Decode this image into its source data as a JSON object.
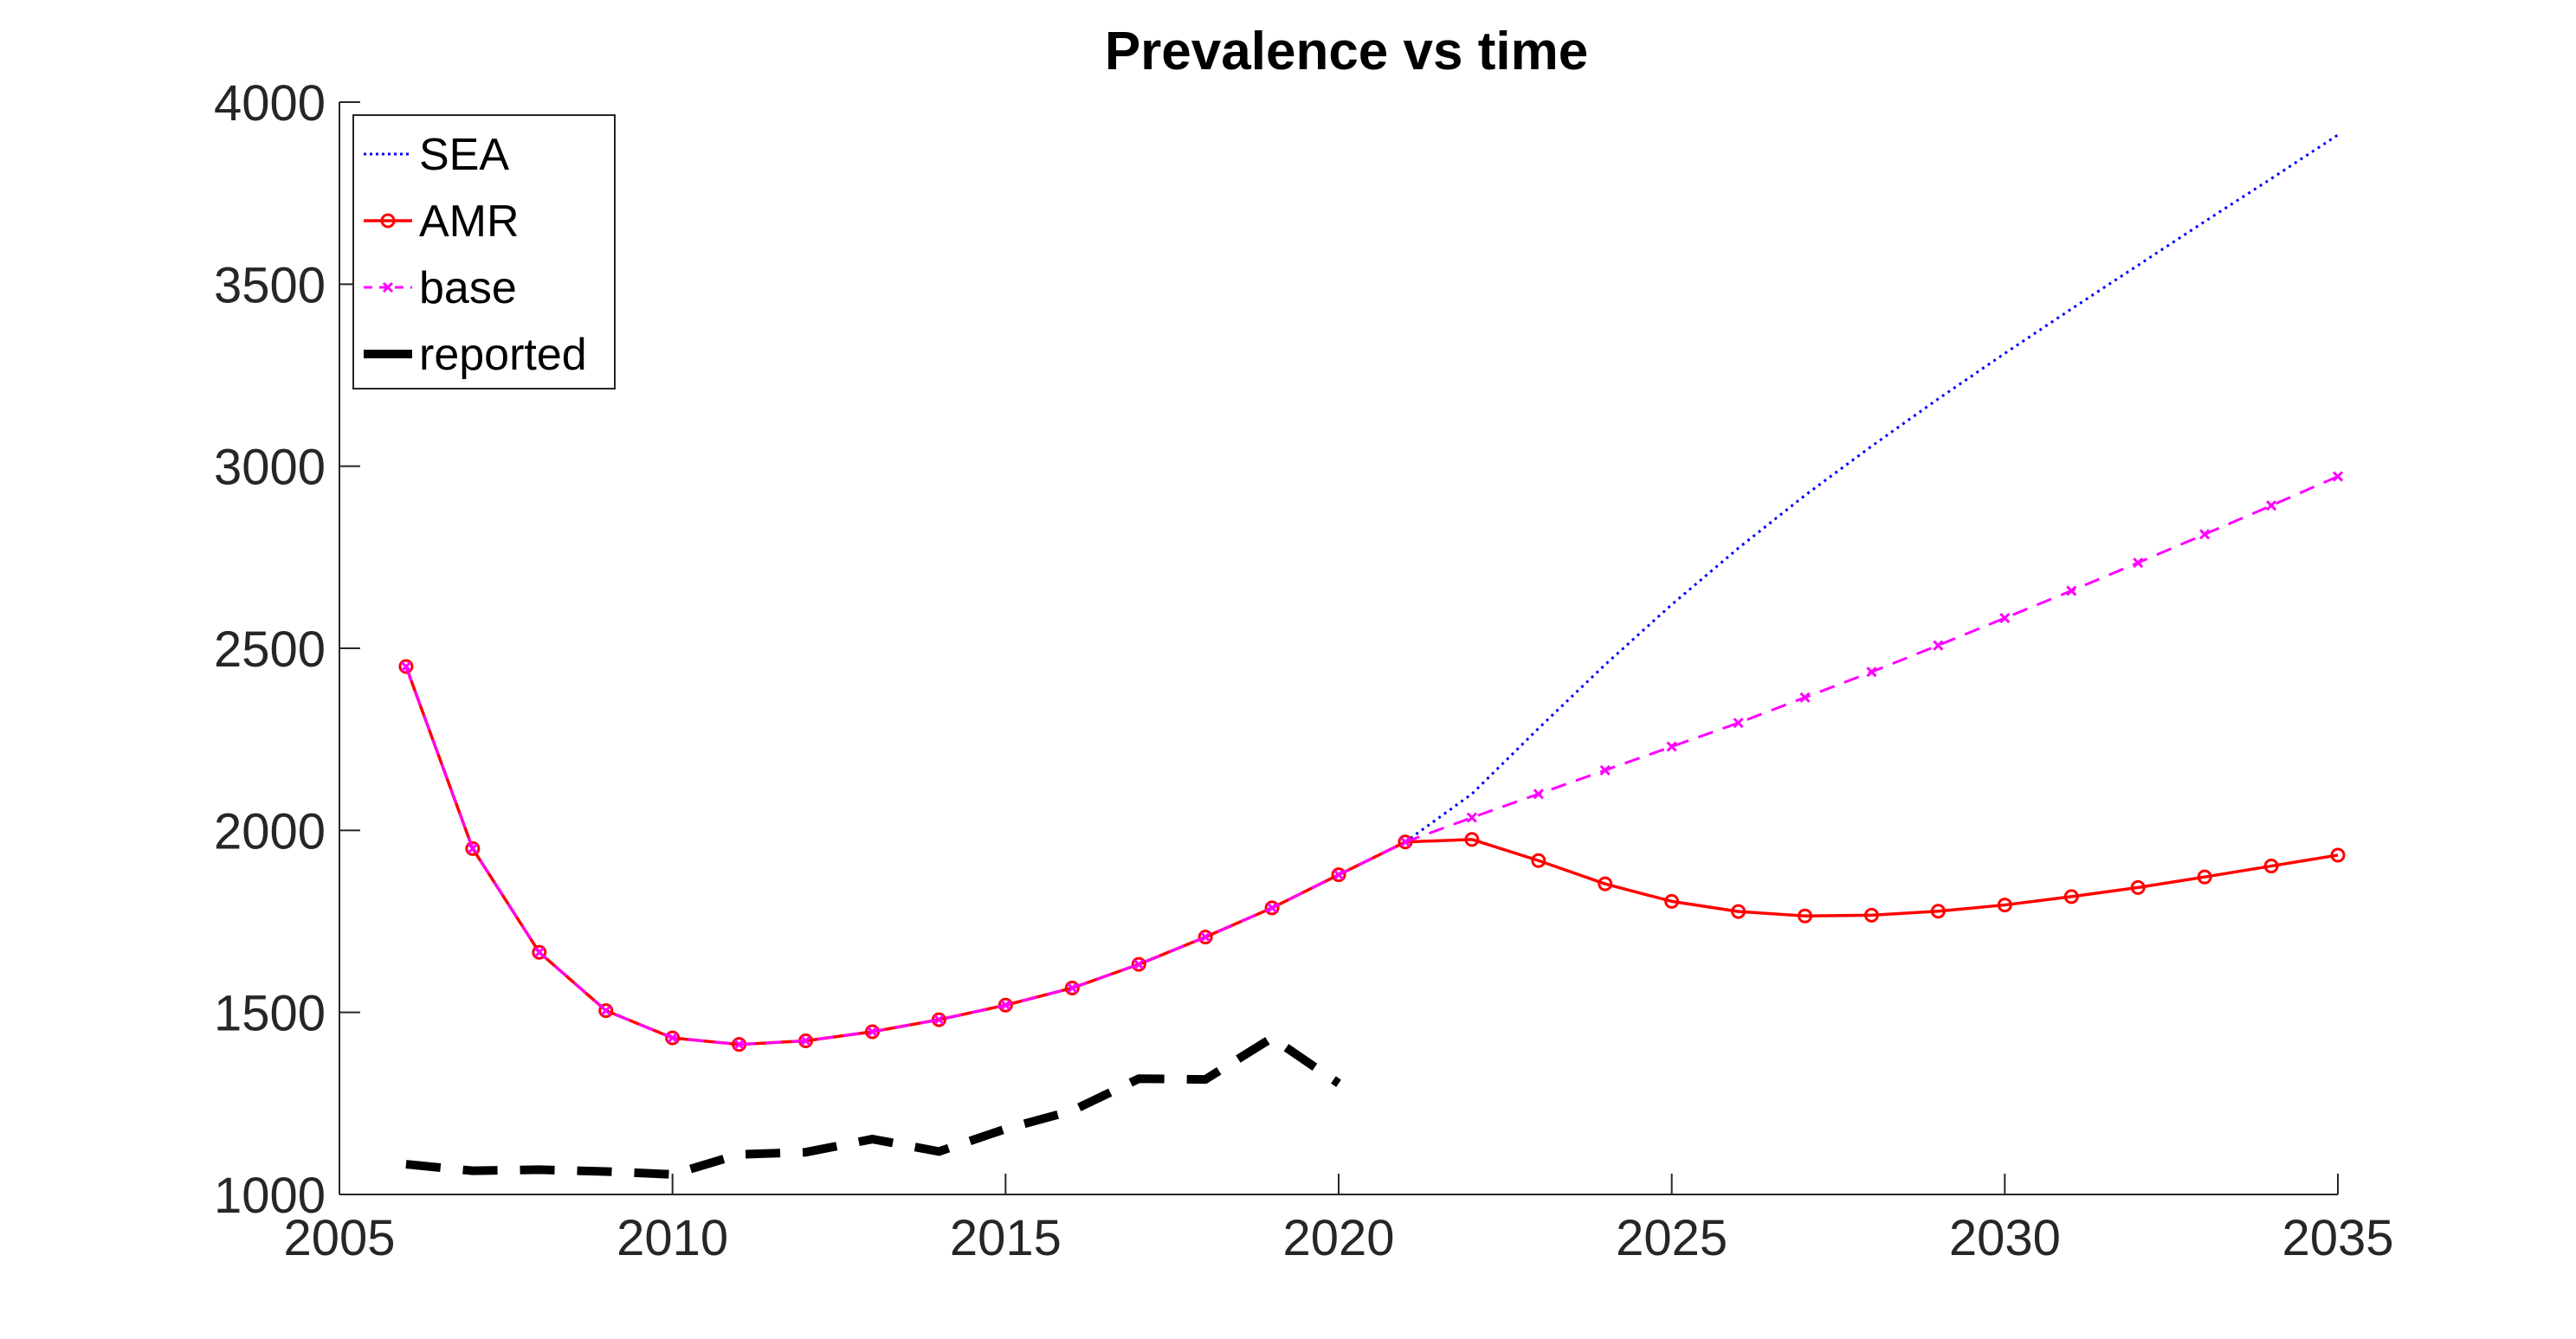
{
  "chart_data": {
    "type": "line",
    "title": "Prevalence vs time",
    "xlabel": "",
    "ylabel": "",
    "xlim": [
      2005,
      2035
    ],
    "ylim": [
      1000,
      4000
    ],
    "x_ticks": [
      2005,
      2010,
      2015,
      2020,
      2025,
      2030,
      2035
    ],
    "y_ticks": [
      1000,
      1500,
      2000,
      2500,
      3000,
      3500,
      4000
    ],
    "x_tick_labels": [
      "2005",
      "2010",
      "2015",
      "2020",
      "2025",
      "2030",
      "2035"
    ],
    "y_tick_labels": [
      "1000",
      "1500",
      "2000",
      "2500",
      "3000",
      "3500",
      "4000"
    ],
    "grid": false,
    "legend_position": "top-left",
    "series": [
      {
        "name": "SEA",
        "color": "#0000ff",
        "style": "dotted",
        "marker": "none",
        "x": [
          2006,
          2007,
          2008,
          2009,
          2010,
          2011,
          2012,
          2013,
          2014,
          2015,
          2016,
          2017,
          2018,
          2019,
          2020,
          2021,
          2022,
          2023,
          2024,
          2025,
          2026,
          2027,
          2028,
          2029,
          2030,
          2031,
          2032,
          2033,
          2034,
          2035
        ],
        "y": [
          2450,
          1950,
          1665,
          1505,
          1430,
          1412,
          1422,
          1447,
          1480,
          1520,
          1567,
          1632,
          1707,
          1787,
          1878,
          1968,
          2100,
          2280,
          2455,
          2620,
          2775,
          2920,
          3055,
          3185,
          3310,
          3432,
          3552,
          3672,
          3790,
          3910
        ]
      },
      {
        "name": "AMR",
        "color": "#ff0000",
        "style": "solid",
        "marker": "circle",
        "x": [
          2006,
          2007,
          2008,
          2009,
          2010,
          2011,
          2012,
          2013,
          2014,
          2015,
          2016,
          2017,
          2018,
          2019,
          2020,
          2021,
          2022,
          2023,
          2024,
          2025,
          2026,
          2027,
          2028,
          2029,
          2030,
          2031,
          2032,
          2033,
          2034,
          2035
        ],
        "y": [
          2450,
          1950,
          1665,
          1505,
          1430,
          1412,
          1422,
          1447,
          1480,
          1520,
          1567,
          1632,
          1707,
          1787,
          1878,
          1968,
          1975,
          1917,
          1853,
          1805,
          1777,
          1765,
          1767,
          1778,
          1795,
          1818,
          1843,
          1872,
          1902,
          1932
        ]
      },
      {
        "name": "base",
        "color": "#ff00ff",
        "style": "dashed",
        "marker": "x",
        "x": [
          2006,
          2007,
          2008,
          2009,
          2010,
          2011,
          2012,
          2013,
          2014,
          2015,
          2016,
          2017,
          2018,
          2019,
          2020,
          2021,
          2022,
          2023,
          2024,
          2025,
          2026,
          2027,
          2028,
          2029,
          2030,
          2031,
          2032,
          2033,
          2034,
          2035
        ],
        "y": [
          2450,
          1950,
          1665,
          1505,
          1430,
          1412,
          1422,
          1447,
          1480,
          1520,
          1567,
          1632,
          1707,
          1787,
          1878,
          1968,
          2035,
          2100,
          2165,
          2230,
          2295,
          2365,
          2435,
          2508,
          2583,
          2658,
          2735,
          2813,
          2892,
          2972
        ]
      },
      {
        "name": "reported",
        "color": "#000000",
        "style": "dashed-thick",
        "marker": "none",
        "x": [
          2006,
          2007,
          2008,
          2009,
          2010,
          2011,
          2012,
          2013,
          2014,
          2015,
          2016,
          2017,
          2018,
          2019,
          2020
        ],
        "y": [
          1083,
          1065,
          1068,
          1063,
          1055,
          1110,
          1116,
          1152,
          1118,
          1180,
          1230,
          1318,
          1316,
          1430,
          1305
        ]
      }
    ]
  }
}
